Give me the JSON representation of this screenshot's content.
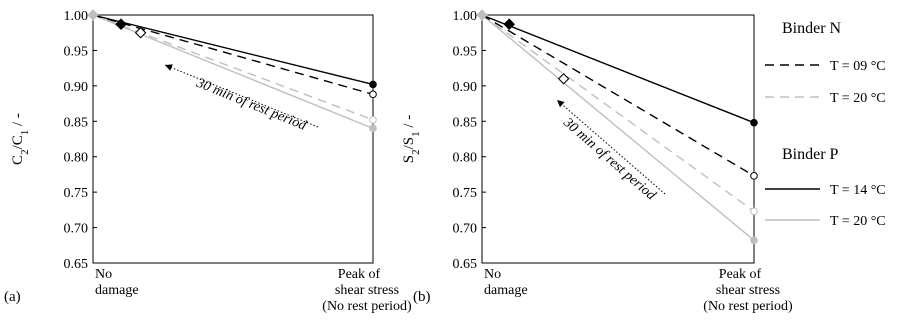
{
  "chart_data": [
    {
      "panel_label": "(a)",
      "type": "line",
      "ylabel_main": "C",
      "ylabel_sub1": "2",
      "ylabel_mid": "/C",
      "ylabel_sub2": "1",
      "ylabel_tail": " / -",
      "ylim": [
        0.65,
        1.0
      ],
      "yticks": [
        "1.00",
        "0.95",
        "0.90",
        "0.85",
        "0.80",
        "0.75",
        "0.70",
        "0.65"
      ],
      "xtick_left": [
        "No",
        "damage"
      ],
      "xtick_right": [
        "Peak of",
        "shear stress",
        "(No rest period)"
      ],
      "grid": false,
      "annotation": "30 min of rest period",
      "series": [
        {
          "key": "N09",
          "start": 1.0,
          "end": 0.888,
          "rest_point": {
            "x": 0.1,
            "y": 0.987
          },
          "rest_filled": true
        },
        {
          "key": "N20",
          "start": 1.0,
          "end": 0.852,
          "rest_point": {
            "x": 0.17,
            "y": 0.975
          },
          "rest_filled": false
        },
        {
          "key": "P14",
          "start": 1.0,
          "end": 0.902
        },
        {
          "key": "P20",
          "start": 1.0,
          "end": 0.84
        }
      ]
    },
    {
      "panel_label": "(b)",
      "type": "line",
      "ylabel_main": "S",
      "ylabel_sub1": "2",
      "ylabel_mid": "/S",
      "ylabel_sub2": "1",
      "ylabel_tail": " / -",
      "ylim": [
        0.65,
        1.0
      ],
      "yticks": [
        "1.00",
        "0.95",
        "0.90",
        "0.85",
        "0.80",
        "0.75",
        "0.70",
        "0.65"
      ],
      "xtick_left": [
        "No",
        "damage"
      ],
      "xtick_right": [
        "Peak of",
        "shear stress",
        "(No rest period)"
      ],
      "grid": false,
      "annotation": "30 min of rest period",
      "series": [
        {
          "key": "N09",
          "start": 1.0,
          "end": 0.773,
          "rest_point": {
            "x": 0.1,
            "y": 0.987
          },
          "rest_filled": true
        },
        {
          "key": "N20",
          "start": 1.0,
          "end": 0.723,
          "rest_point": {
            "x": 0.3,
            "y": 0.91
          },
          "rest_filled": false
        },
        {
          "key": "P14",
          "start": 1.0,
          "end": 0.848
        },
        {
          "key": "P20",
          "start": 1.0,
          "end": 0.682
        }
      ]
    }
  ],
  "legend": {
    "placement": "right",
    "groups": [
      {
        "title": "Binder N",
        "entries": [
          {
            "key": "N09",
            "label": "T = 09 °C",
            "color": "#000000",
            "dash": "dashed"
          },
          {
            "key": "N20",
            "label": "T = 20 °C",
            "color": "#bfbfbf",
            "dash": "dashed"
          }
        ]
      },
      {
        "title": "Binder P",
        "entries": [
          {
            "key": "P14",
            "label": "T = 14 °C",
            "color": "#000000",
            "dash": "solid"
          },
          {
            "key": "P20",
            "label": "T = 20 °C",
            "color": "#bfbfbf",
            "dash": "solid"
          }
        ]
      }
    ]
  }
}
